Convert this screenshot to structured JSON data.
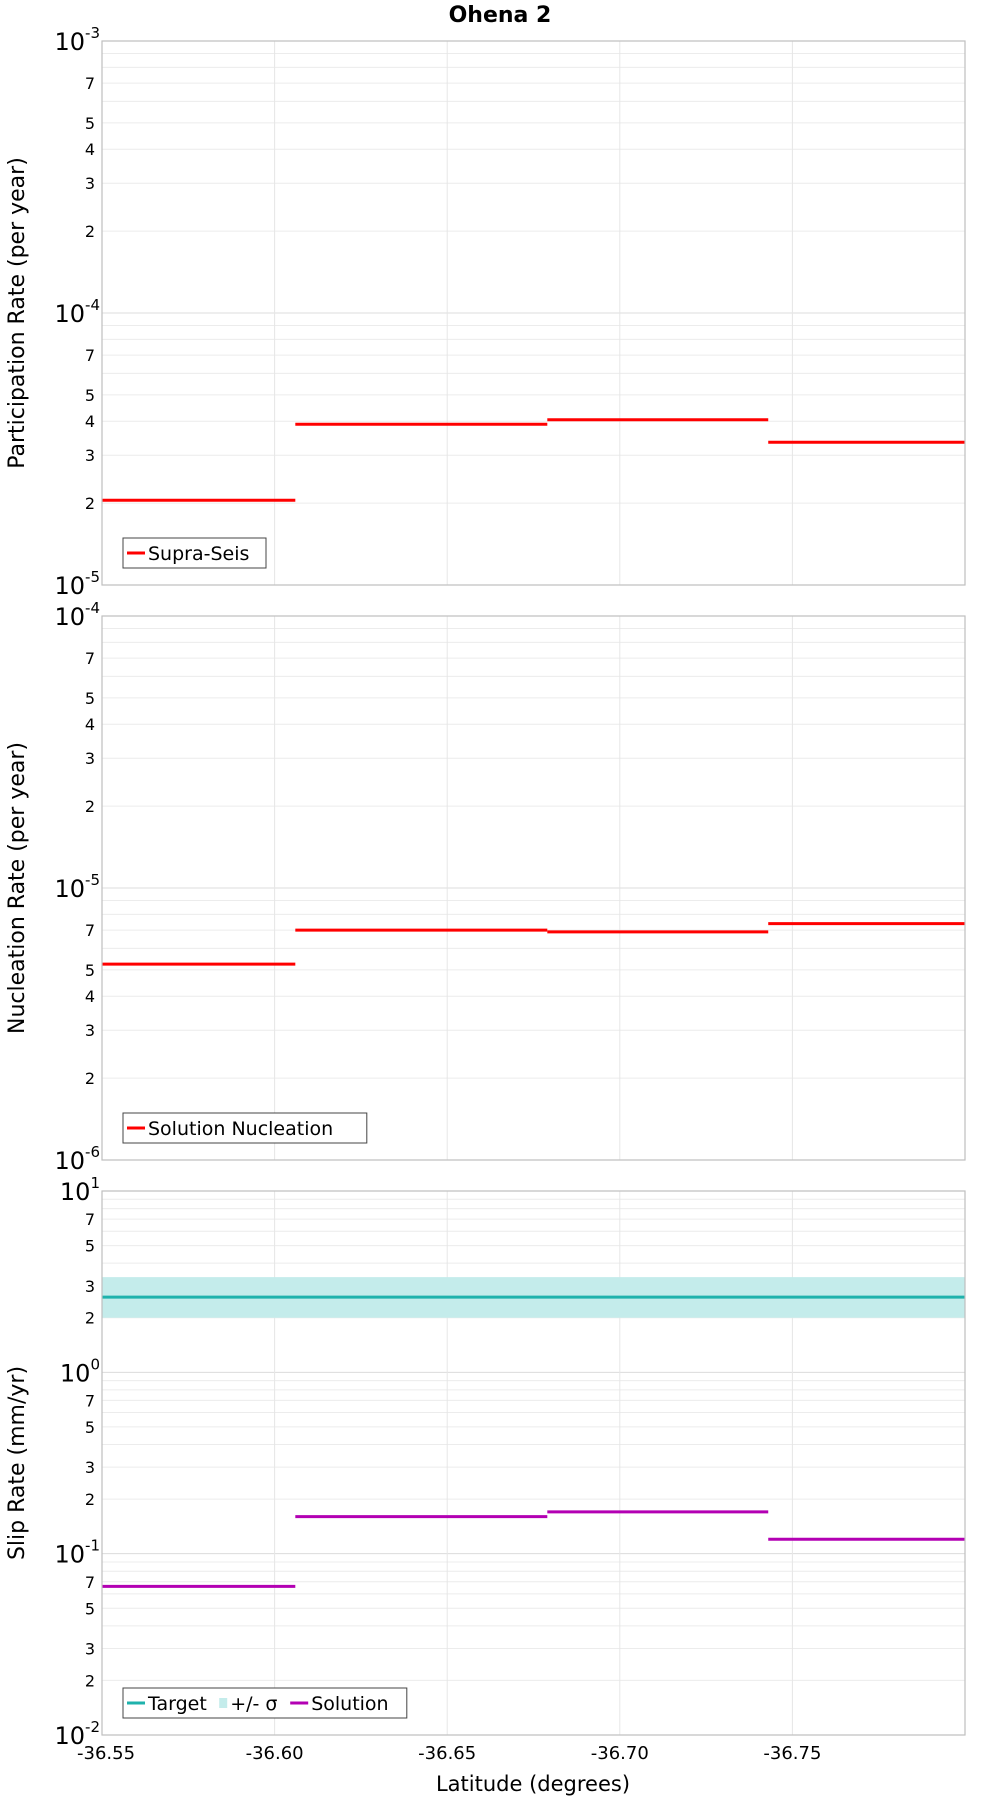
{
  "chart_data": [
    {
      "type": "line",
      "title": "Ohena 2",
      "ylabel": "Participation Rate (per year)",
      "xlabel": "",
      "yscale": "log",
      "ylim": [
        1e-05,
        0.001
      ],
      "xlim": [
        -36.55,
        -36.8
      ],
      "y_major_ticks": [
        {
          "value": 1e-05,
          "base": "10",
          "exp": "-5"
        },
        {
          "value": 0.0001,
          "base": "10",
          "exp": "-4"
        },
        {
          "value": 0.001,
          "base": "10",
          "exp": "-3"
        }
      ],
      "y_minor_labels": [
        "2",
        "3",
        "4",
        "5",
        "7"
      ],
      "x_ticks": [
        "-36.55",
        "-36.60",
        "-36.65",
        "-36.70",
        "-36.75"
      ],
      "legend_position": "bottom-left",
      "legend": [
        "Supra-Seis"
      ],
      "series": [
        {
          "name": "Supra-Seis",
          "color": "#ff0000",
          "style": "step",
          "segments": [
            {
              "x0": -36.55,
              "x1": -36.606,
              "y": 2.05e-05
            },
            {
              "x0": -36.606,
              "x1": -36.679,
              "y": 3.9e-05
            },
            {
              "x0": -36.679,
              "x1": -36.743,
              "y": 4.05e-05
            },
            {
              "x0": -36.743,
              "x1": -36.8,
              "y": 3.35e-05
            }
          ]
        }
      ]
    },
    {
      "type": "line",
      "title": "",
      "ylabel": "Nucleation Rate (per year)",
      "xlabel": "",
      "yscale": "log",
      "ylim": [
        1e-06,
        0.0001
      ],
      "xlim": [
        -36.55,
        -36.8
      ],
      "y_major_ticks": [
        {
          "value": 1e-06,
          "base": "10",
          "exp": "-6"
        },
        {
          "value": 1e-05,
          "base": "10",
          "exp": "-5"
        },
        {
          "value": 0.0001,
          "base": "10",
          "exp": "-4"
        }
      ],
      "y_minor_labels": [
        "2",
        "3",
        "4",
        "5",
        "7"
      ],
      "x_ticks": [
        "-36.55",
        "-36.60",
        "-36.65",
        "-36.70",
        "-36.75"
      ],
      "legend_position": "bottom-left",
      "legend": [
        "Solution Nucleation"
      ],
      "series": [
        {
          "name": "Solution Nucleation",
          "color": "#ff0000",
          "style": "step",
          "segments": [
            {
              "x0": -36.55,
              "x1": -36.606,
              "y": 5.25e-06
            },
            {
              "x0": -36.606,
              "x1": -36.679,
              "y": 7e-06
            },
            {
              "x0": -36.679,
              "x1": -36.743,
              "y": 6.9e-06
            },
            {
              "x0": -36.743,
              "x1": -36.8,
              "y": 7.4e-06
            }
          ]
        }
      ]
    },
    {
      "type": "line",
      "title": "",
      "ylabel": "Slip Rate (mm/yr)",
      "xlabel": "Latitude (degrees)",
      "yscale": "log",
      "ylim": [
        0.01,
        10
      ],
      "xlim": [
        -36.55,
        -36.8
      ],
      "y_major_ticks": [
        {
          "value": 0.01,
          "base": "10",
          "exp": "-2"
        },
        {
          "value": 0.1,
          "base": "10",
          "exp": "-1"
        },
        {
          "value": 1,
          "base": "10",
          "exp": "0"
        },
        {
          "value": 10,
          "base": "10",
          "exp": "1"
        }
      ],
      "y_minor_labels": [
        "2",
        "3",
        "5",
        "7"
      ],
      "x_ticks": [
        "-36.55",
        "-36.60",
        "-36.65",
        "-36.70",
        "-36.75"
      ],
      "legend_position": "bottom-left",
      "legend": [
        "Target",
        "+/- σ",
        "Solution"
      ],
      "band": {
        "name": "+/- σ",
        "color": "#c4eceb",
        "y_low": 2.0,
        "y_high": 3.35,
        "x0": -36.55,
        "x1": -36.8
      },
      "series": [
        {
          "name": "Target",
          "color": "#1fb2ac",
          "style": "step",
          "segments": [
            {
              "x0": -36.55,
              "x1": -36.8,
              "y": 2.6
            }
          ]
        },
        {
          "name": "Solution",
          "color": "#b300b3",
          "style": "step",
          "segments": [
            {
              "x0": -36.55,
              "x1": -36.606,
              "y": 0.066
            },
            {
              "x0": -36.606,
              "x1": -36.679,
              "y": 0.16
            },
            {
              "x0": -36.679,
              "x1": -36.743,
              "y": 0.17
            },
            {
              "x0": -36.743,
              "x1": -36.8,
              "y": 0.12
            }
          ]
        }
      ]
    }
  ]
}
